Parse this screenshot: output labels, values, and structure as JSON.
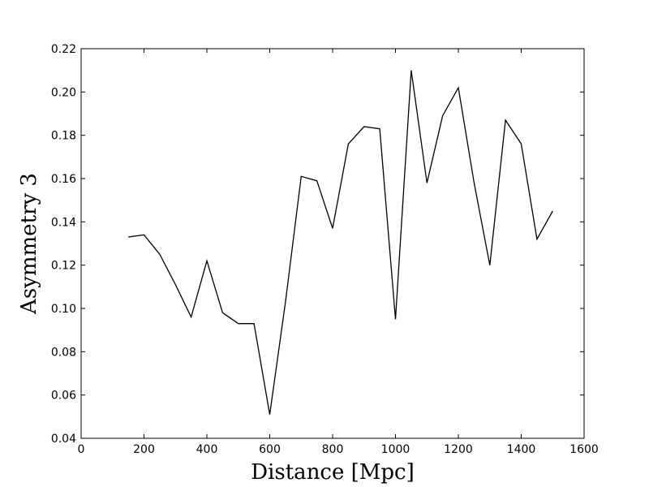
{
  "chart_data": {
    "type": "line",
    "title": "",
    "xlabel": "Distance [Mpc]",
    "ylabel": "Asymmetry 3",
    "xlim": [
      0,
      1600
    ],
    "ylim": [
      0.04,
      0.22
    ],
    "xticks": [
      "0",
      "200",
      "400",
      "600",
      "800",
      "1000",
      "1200",
      "1400",
      "1600"
    ],
    "yticks": [
      "0.04",
      "0.06",
      "0.08",
      "0.10",
      "0.12",
      "0.14",
      "0.16",
      "0.18",
      "0.20",
      "0.22"
    ],
    "grid": false,
    "legend": "none",
    "series": [
      {
        "color": "#000000",
        "x": [
          150,
          200,
          250,
          300,
          350,
          400,
          450,
          500,
          550,
          600,
          650,
          700,
          750,
          800,
          850,
          900,
          950,
          1000,
          1050,
          1100,
          1150,
          1200,
          1250,
          1300,
          1350,
          1400,
          1450,
          1500
        ],
        "y": [
          0.133,
          0.134,
          0.125,
          0.111,
          0.096,
          0.122,
          0.098,
          0.093,
          0.093,
          0.051,
          0.103,
          0.161,
          0.159,
          0.137,
          0.176,
          0.184,
          0.183,
          0.095,
          0.21,
          0.158,
          0.189,
          0.202,
          0.158,
          0.12,
          0.187,
          0.176,
          0.132,
          0.145
        ]
      }
    ]
  }
}
